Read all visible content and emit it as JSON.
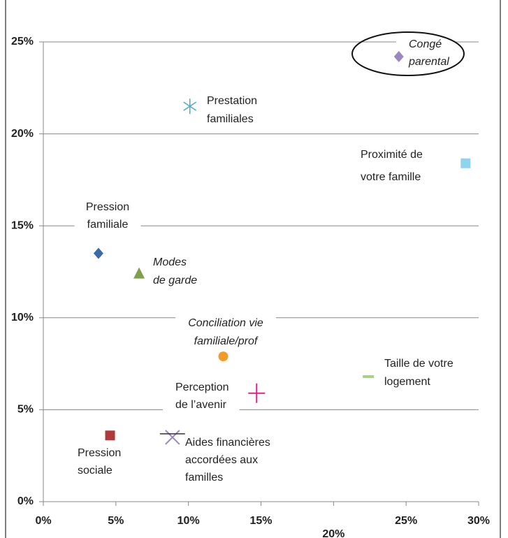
{
  "chart_data": {
    "type": "scatter",
    "xlim": [
      0,
      30
    ],
    "ylim": [
      0,
      25
    ],
    "xticks": [
      {
        "value": 0,
        "label": "0%"
      },
      {
        "value": 5,
        "label": "5%"
      },
      {
        "value": 10,
        "label": "10%"
      },
      {
        "value": 15,
        "label": "15%"
      },
      {
        "value": 20,
        "label": "20%"
      },
      {
        "value": 25,
        "label": "25%"
      },
      {
        "value": 30,
        "label": "30%"
      }
    ],
    "yticks": [
      {
        "value": 0,
        "label": "0%"
      },
      {
        "value": 5,
        "label": "5%"
      },
      {
        "value": 10,
        "label": "10%"
      },
      {
        "value": 15,
        "label": "15%"
      },
      {
        "value": 20,
        "label": "20%"
      },
      {
        "value": 25,
        "label": "25%"
      }
    ],
    "grid": true,
    "points": [
      {
        "label": [
          "Congé",
          "parental"
        ],
        "x": 24.5,
        "y": 24.2,
        "marker": "diamond",
        "color": "#9b88c0",
        "italic": true
      },
      {
        "label": [
          "Prestation",
          "familiales"
        ],
        "x": 10.1,
        "y": 21.5,
        "marker": "asterisk",
        "color": "#4bacc6",
        "italic": false
      },
      {
        "label": [
          "Proximité de",
          "votre famille"
        ],
        "x": 29.1,
        "y": 18.4,
        "marker": "square",
        "color": "#8ed3f0",
        "italic": false
      },
      {
        "label": [
          "Pression",
          "familiale"
        ],
        "x": 3.8,
        "y": 13.5,
        "marker": "diamond",
        "color": "#3a6aa8",
        "italic": false
      },
      {
        "label": [
          "Modes",
          "de garde"
        ],
        "x": 6.6,
        "y": 12.4,
        "marker": "triangle",
        "color": "#7da04a",
        "italic": true
      },
      {
        "label": [
          "Conciliation vie",
          "familiale/prof"
        ],
        "x": 12.4,
        "y": 7.9,
        "marker": "circle",
        "color": "#f39a2b",
        "italic": true
      },
      {
        "label": [
          "Taille de votre",
          "logement"
        ],
        "x": 22.4,
        "y": 6.8,
        "marker": "dash",
        "color": "#a8cf8c",
        "italic": false
      },
      {
        "label": [
          "Perception",
          "de l’avenir"
        ],
        "x": 14.7,
        "y": 5.9,
        "marker": "plus",
        "color": "#e0208b",
        "italic": false
      },
      {
        "label": [
          "Pression",
          "sociale"
        ],
        "x": 4.6,
        "y": 3.6,
        "marker": "square",
        "color": "#b03a3a",
        "italic": false
      },
      {
        "label": [
          "Aides financières",
          "accordées aux",
          "familles"
        ],
        "x": 8.9,
        "y": 3.5,
        "marker": "x",
        "color": "#9b88c0",
        "italic": false
      }
    ]
  }
}
